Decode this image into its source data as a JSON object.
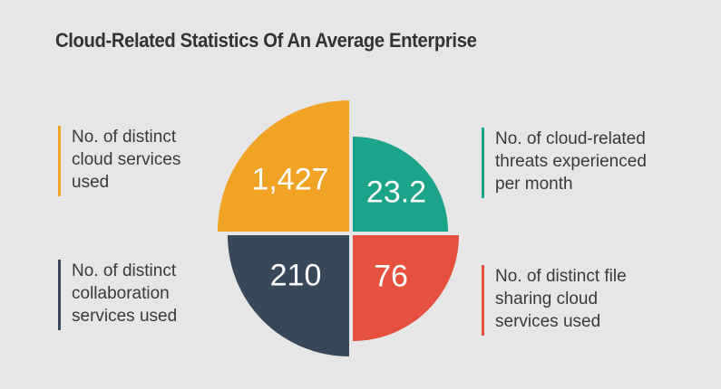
{
  "title": "Cloud-Related Statistics Of An Average Enterprise",
  "colors": {
    "background": "#E6E6E6",
    "title_text": "#333333",
    "label_text": "#3A3A3A",
    "value_text": "#FFFFFF"
  },
  "chart_data": {
    "type": "pie",
    "variant": "four-quadrant infographic; each segment is a 90° quarter circle whose radius reflects value rank",
    "title": "Cloud-Related Statistics Of An Average Enterprise",
    "legend_position": "sides",
    "segments": [
      {
        "id": "cloud-services",
        "position": "top-left",
        "label": "No. of distinct\ncloud services\nused",
        "value": 1427,
        "value_display": "1,427",
        "color": "#F0A325"
      },
      {
        "id": "cloud-threats",
        "position": "top-right",
        "label": "No. of cloud-related\nthreats experienced\nper month",
        "value": 23.2,
        "value_display": "23.2",
        "color": "#1BA489"
      },
      {
        "id": "collaboration-services",
        "position": "bottom-left",
        "label": "No. of distinct\ncollaboration\nservices used",
        "value": 210,
        "value_display": "210",
        "color": "#36485A"
      },
      {
        "id": "file-sharing-services",
        "position": "bottom-right",
        "label": "No. of distinct file\nsharing cloud\nservices used",
        "value": 76,
        "value_display": "76",
        "color": "#E5503F"
      }
    ]
  }
}
